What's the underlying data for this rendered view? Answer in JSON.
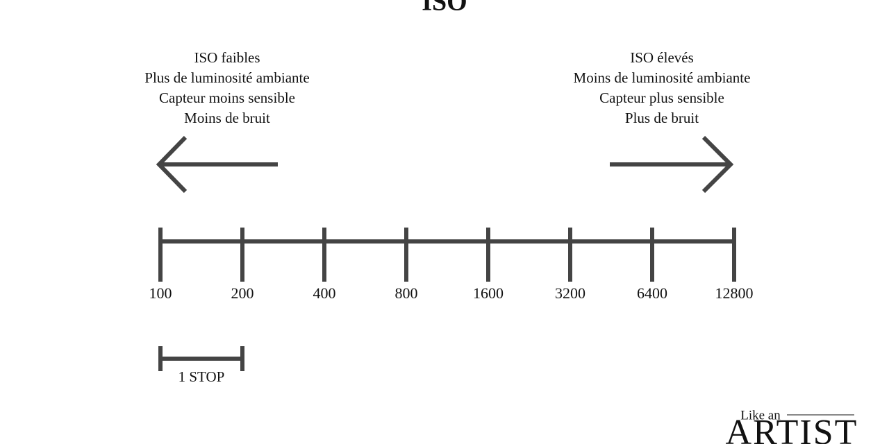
{
  "title": "ISO",
  "left": {
    "lines": [
      "ISO faibles",
      "Plus de luminosité ambiante",
      "Capteur moins sensible",
      "Moins de bruit"
    ]
  },
  "right": {
    "lines": [
      "ISO élevés",
      "Moins de luminosité ambiante",
      "Capteur plus sensible",
      "Plus de bruit"
    ]
  },
  "scale": {
    "labels": [
      100,
      200,
      400,
      800,
      1600,
      3200,
      6400,
      12800
    ]
  },
  "stop": {
    "label": "1 STOP"
  },
  "logo": {
    "top": "Like an",
    "main": "ARTIST"
  }
}
